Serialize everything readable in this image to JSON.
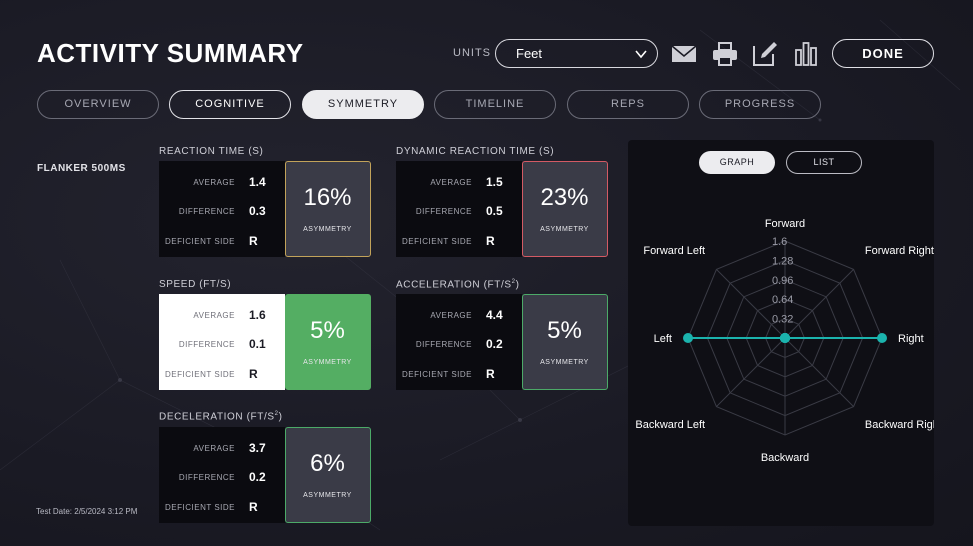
{
  "header": {
    "title": "ACTIVITY SUMMARY",
    "units_label": "UNITS",
    "units_value": "Feet",
    "done_label": "DONE",
    "icons": [
      "mail-icon",
      "print-icon",
      "edit-icon",
      "bar-chart-icon"
    ]
  },
  "tabs": [
    {
      "label": "OVERVIEW",
      "state": "inactive"
    },
    {
      "label": "COGNITIVE",
      "state": "highlight"
    },
    {
      "label": "SYMMETRY",
      "state": "active"
    },
    {
      "label": "TIMELINE",
      "state": "inactive"
    },
    {
      "label": "REPS",
      "state": "inactive"
    },
    {
      "label": "PROGRESS",
      "state": "inactive"
    }
  ],
  "test_name": "FLANKER 500MS",
  "test_date": "Test Date: 2/5/2024 3:12 PM",
  "stat_labels": {
    "average": "AVERAGE",
    "difference": "DIFFERENCE",
    "deficient_side": "DEFICIENT SIDE",
    "asymmetry": "ASYMMETRY"
  },
  "metrics": {
    "reaction_time": {
      "title": "REACTION TIME (S)",
      "average": "1.4",
      "difference": "0.3",
      "deficient_side": "R",
      "asymmetry": "16%",
      "accent": "#c2a35a"
    },
    "dynamic_reaction_time": {
      "title": "DYNAMIC REACTION TIME (S)",
      "average": "1.5",
      "difference": "0.5",
      "deficient_side": "R",
      "asymmetry": "23%",
      "accent": "#d35a64"
    },
    "speed": {
      "title": "SPEED (FT/S)",
      "average": "1.6",
      "difference": "0.1",
      "deficient_side": "R",
      "asymmetry": "5%",
      "accent": "#54ae63"
    },
    "acceleration": {
      "title": "ACCELERATION (FT/S",
      "title_sup": "2",
      "title_end": ")",
      "average": "4.4",
      "difference": "0.2",
      "deficient_side": "R",
      "asymmetry": "5%",
      "accent": "#4caa68"
    },
    "deceleration": {
      "title": "DECELERATION (FT/S",
      "title_sup": "2",
      "title_end": ")",
      "average": "3.7",
      "difference": "0.2",
      "deficient_side": "R",
      "asymmetry": "6%",
      "accent": "#4caa68"
    }
  },
  "panel": {
    "graph_label": "GRAPH",
    "list_label": "LIST"
  },
  "chart_data": {
    "type": "radar",
    "axes": [
      "Forward",
      "Forward Right",
      "Right",
      "Backward Right",
      "Backward",
      "Backward Left",
      "Left",
      "Forward Left"
    ],
    "ticks": [
      "1.6",
      "1.28",
      "0.96",
      "0.64",
      "0.32"
    ],
    "range": [
      0,
      1.6
    ],
    "series": [
      {
        "values": [
          0,
          0,
          1.6,
          0,
          0,
          0,
          1.6,
          0
        ],
        "color": "#1bb3ad"
      }
    ]
  }
}
